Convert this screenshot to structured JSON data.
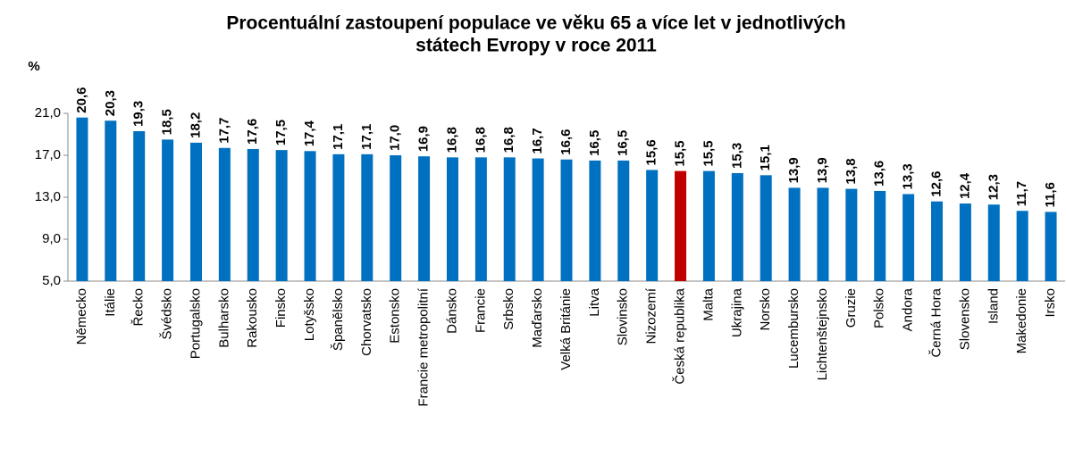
{
  "chart_data": {
    "type": "bar",
    "title": [
      "Procentuální zastoupení populace ve věku 65 a více let v jednotlivých",
      "státech Evropy v roce 2011"
    ],
    "y_label": "%",
    "categories": [
      "Německo",
      "Itálie",
      "Řecko",
      "Švédsko",
      "Portugalsko",
      "Bulharsko",
      "Rakousko",
      "Finsko",
      "Lotyšsko",
      "Španělsko",
      "Chorvatsko",
      "Estonsko",
      "Francie metropolitní",
      "Dánsko",
      "Francie",
      "Srbsko",
      "Maďarsko",
      "Velká Británie",
      "Litva",
      "Slovinsko",
      "Nizozemí",
      "Česká republika",
      "Malta",
      "Ukrajina",
      "Norsko",
      "Lucembursko",
      "Lichtenštejnsko",
      "Gruzie",
      "Polsko",
      "Andora",
      "Černá Hora",
      "Slovensko",
      "Island",
      "Makedonie",
      "Irsko"
    ],
    "values": [
      20.6,
      20.3,
      19.3,
      18.5,
      18.2,
      17.7,
      17.6,
      17.5,
      17.4,
      17.1,
      17.1,
      17.0,
      16.9,
      16.8,
      16.8,
      16.8,
      16.7,
      16.6,
      16.5,
      16.5,
      15.6,
      15.5,
      15.5,
      15.3,
      15.1,
      13.9,
      13.9,
      13.8,
      13.6,
      13.3,
      12.6,
      12.4,
      12.3,
      11.7,
      11.6
    ],
    "value_labels": [
      "20,6",
      "20,3",
      "19,3",
      "18,5",
      "18,2",
      "17,7",
      "17,6",
      "17,5",
      "17,4",
      "17,1",
      "17,1",
      "17,0",
      "16,9",
      "16,8",
      "16,8",
      "16,8",
      "16,7",
      "16,6",
      "16,5",
      "16,5",
      "15,6",
      "15,5",
      "15,5",
      "15,3",
      "15,1",
      "13,9",
      "13,9",
      "13,8",
      "13,6",
      "13,3",
      "12,6",
      "12,4",
      "12,3",
      "11,7",
      "11,6"
    ],
    "colors": [
      "#0070c0",
      "#0070c0",
      "#0070c0",
      "#0070c0",
      "#0070c0",
      "#0070c0",
      "#0070c0",
      "#0070c0",
      "#0070c0",
      "#0070c0",
      "#0070c0",
      "#0070c0",
      "#0070c0",
      "#0070c0",
      "#0070c0",
      "#0070c0",
      "#0070c0",
      "#0070c0",
      "#0070c0",
      "#0070c0",
      "#0070c0",
      "#c00000",
      "#0070c0",
      "#0070c0",
      "#0070c0",
      "#0070c0",
      "#0070c0",
      "#0070c0",
      "#0070c0",
      "#0070c0",
      "#0070c0",
      "#0070c0",
      "#0070c0",
      "#0070c0",
      "#0070c0"
    ],
    "ylim": [
      5,
      21
    ],
    "yticks": [
      {
        "value": 5,
        "label": "5,0"
      },
      {
        "value": 9,
        "label": "9,0"
      },
      {
        "value": 13,
        "label": "13,0"
      },
      {
        "value": 17,
        "label": "17,0"
      },
      {
        "value": 21,
        "label": "21,0"
      }
    ],
    "grid": false
  }
}
